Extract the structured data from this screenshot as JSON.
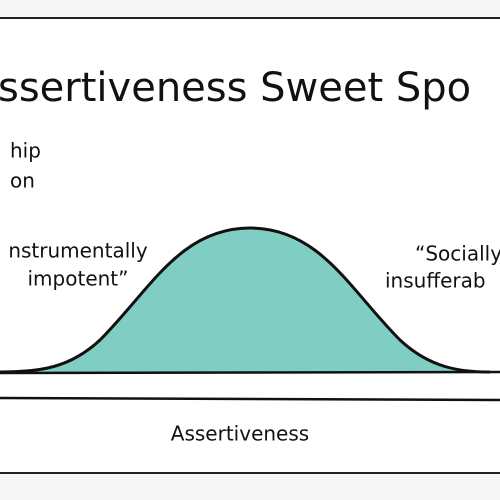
{
  "title": "ssertiveness Sweet Spo",
  "left_label": {
    "lines": [
      "hip",
      "on"
    ]
  },
  "low_label": {
    "lines": [
      "nstrumentally",
      "impotent”"
    ]
  },
  "high_label": {
    "lines": [
      "“Socially",
      "insufferab"
    ]
  },
  "axis_label": "Assertiveness"
}
